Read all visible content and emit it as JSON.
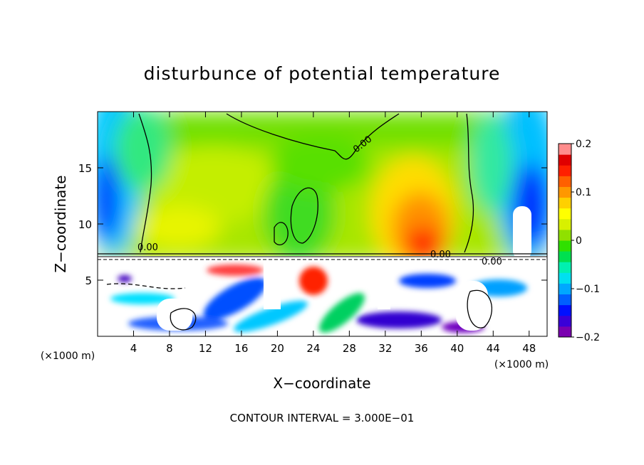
{
  "chart_data": {
    "type": "heatmap",
    "title": "disturbunce of potential temperature",
    "xlabel": "X−coordinate",
    "ylabel": "Z−coordinate",
    "x_unit_left": "(×1000 m)",
    "x_unit_right": "(×1000 m)",
    "footer": "CONTOUR INTERVAL = 3.000E−01",
    "xlim": [
      0,
      50
    ],
    "ylim": [
      0,
      20
    ],
    "x_ticks": [
      4,
      8,
      12,
      16,
      20,
      24,
      28,
      32,
      36,
      40,
      44,
      48
    ],
    "y_ticks": [
      5,
      10,
      15
    ],
    "colorbar": {
      "range": [
        -0.2,
        0.2
      ],
      "ticks": [
        0.2,
        0.1,
        0,
        -0.1,
        -0.2
      ],
      "tick_labels": [
        "0.2",
        "0.1",
        "0",
        "−0.1",
        "−0.2"
      ],
      "colors": [
        "#7a00b0",
        "#3a00d8",
        "#0010ff",
        "#0060ff",
        "#00a8ff",
        "#00e0f0",
        "#00f0b0",
        "#00e050",
        "#30e000",
        "#90e000",
        "#d8f000",
        "#ffff00",
        "#ffd000",
        "#ff9800",
        "#ff6000",
        "#ff2000",
        "#e00000",
        "#ff8c8c"
      ]
    },
    "contour_labels": [
      "0.00",
      "0.00",
      "0.00",
      "0.00"
    ],
    "regions": [
      {
        "name": "upper layer (z > 7.5 km)",
        "x_range": [
          0,
          50
        ],
        "z_range": [
          7.5,
          20
        ],
        "value_range": [
          -0.2,
          0.16
        ],
        "note": "smooth field, mostly near 0; warm core ~0.15 near x=35, z=9; cold edges near x=0-3 and x=44-50"
      },
      {
        "name": "lower turbulent layer (z < 7.5 km)",
        "x_range": [
          0,
          50
        ],
        "z_range": [
          0,
          7.5
        ],
        "note": "unresolved white regions with dense contours; colored filaments between -0.2 and 0.2"
      }
    ]
  }
}
